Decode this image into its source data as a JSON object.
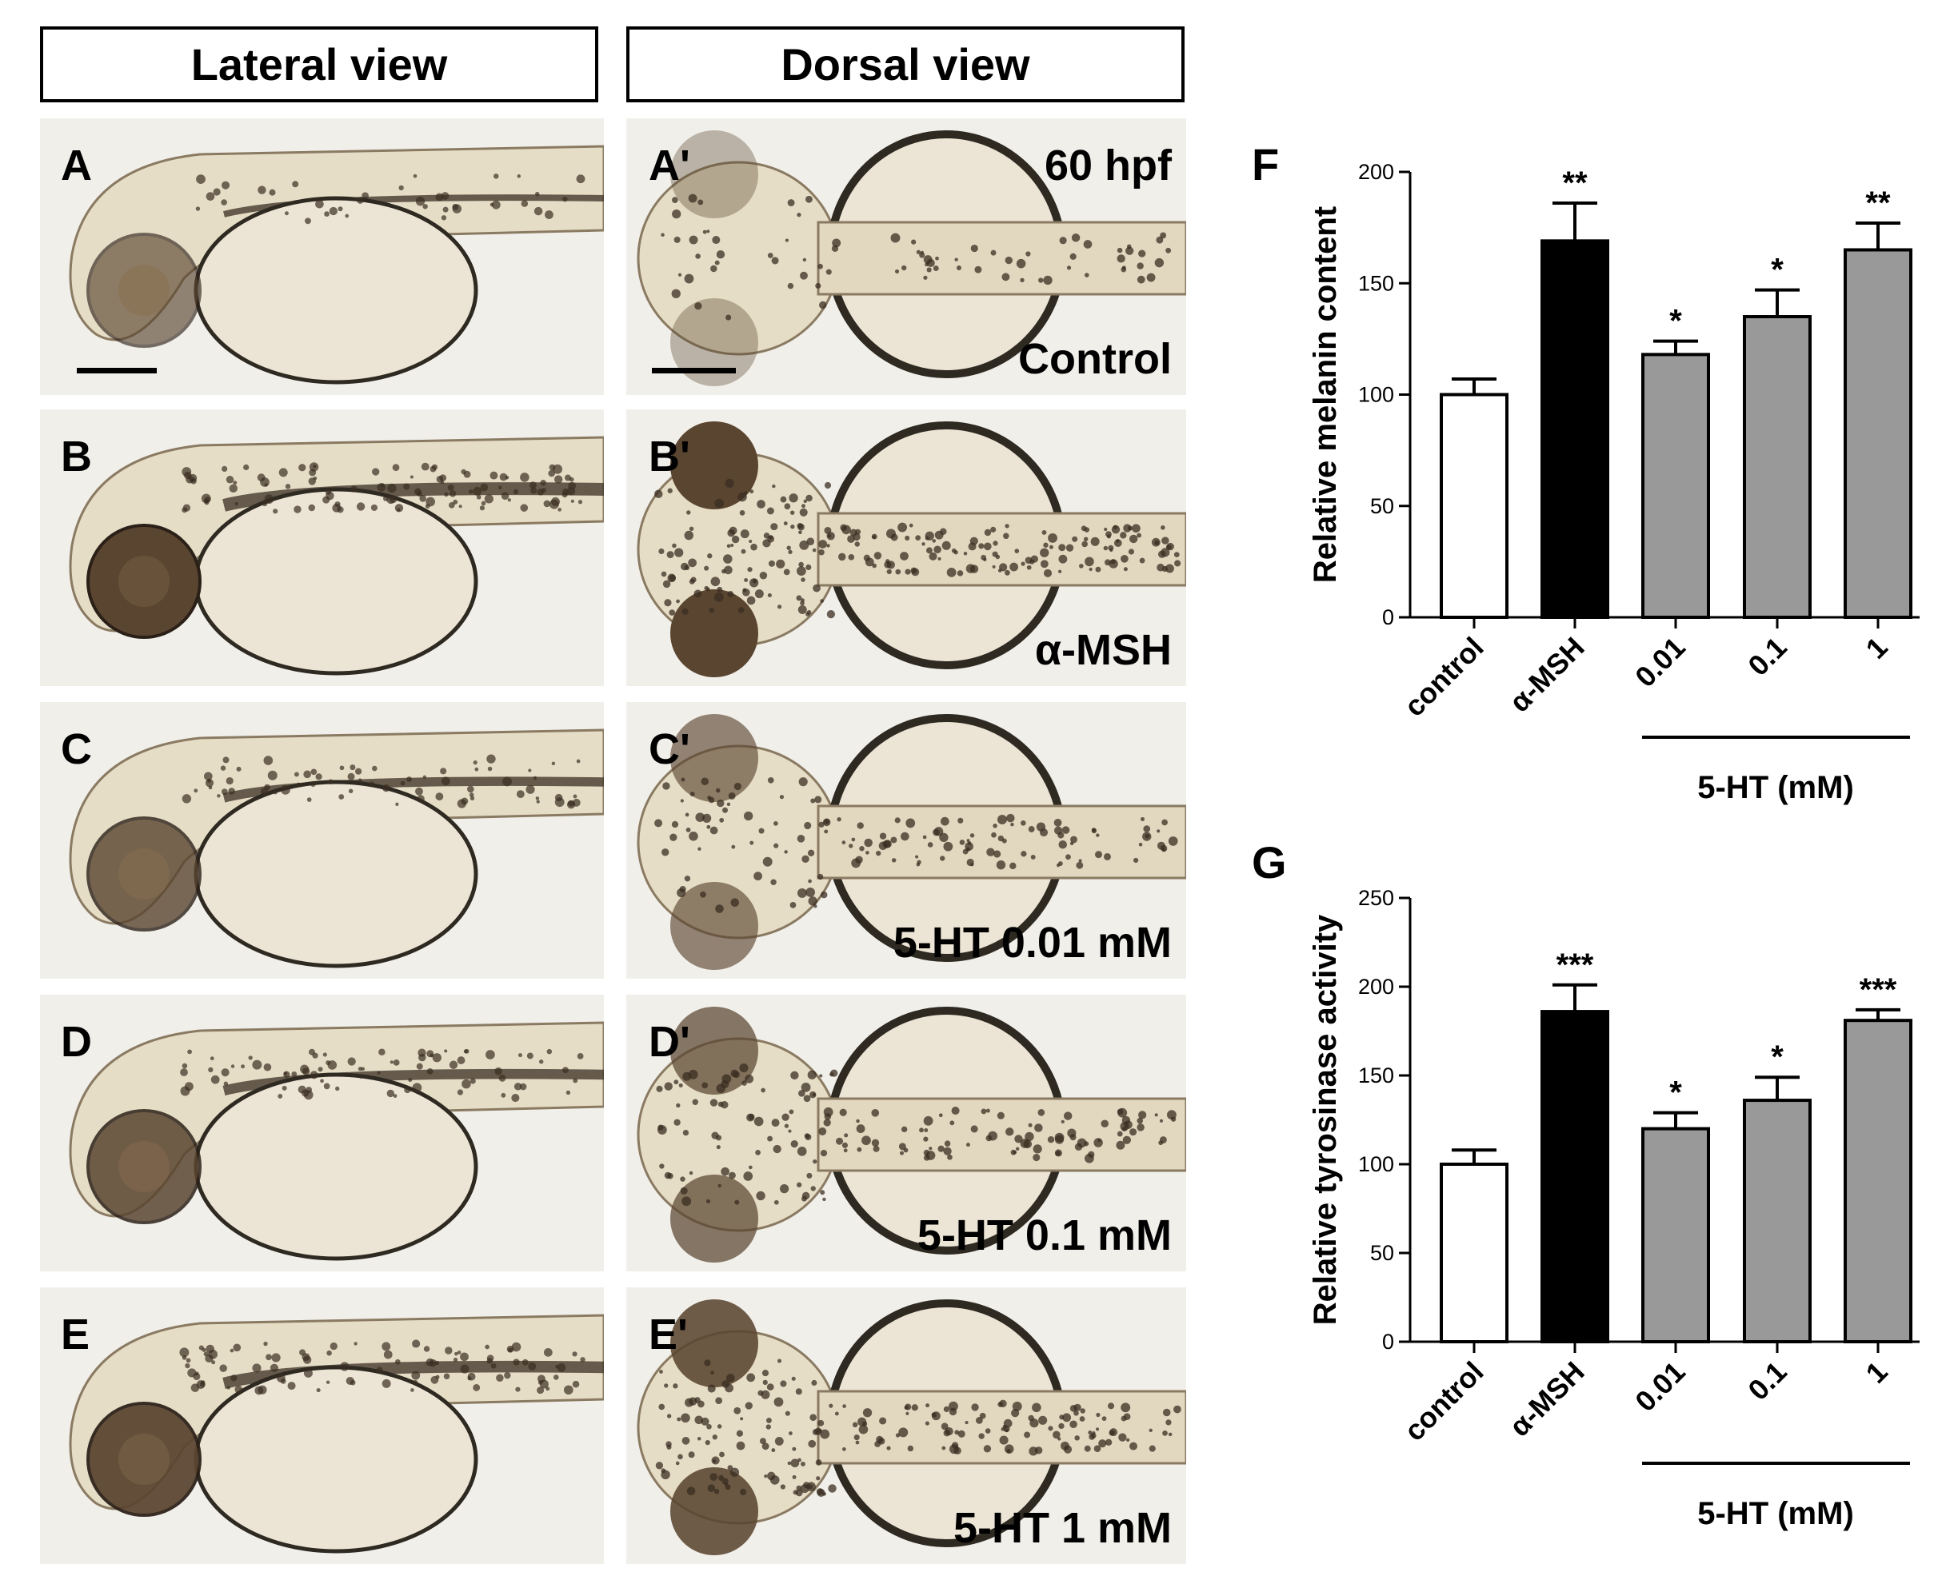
{
  "headers": {
    "lateral": "Lateral view",
    "dorsal": "Dorsal view"
  },
  "stage_label": "60 hpf",
  "rows": [
    {
      "lateral_label": "A",
      "dorsal_label": "A'",
      "condition": "Control",
      "pigment": 0.2,
      "scale_bar": true
    },
    {
      "lateral_label": "B",
      "dorsal_label": "B'",
      "condition": "α-MSH",
      "pigment": 1.0,
      "scale_bar": false
    },
    {
      "lateral_label": "C",
      "dorsal_label": "C'",
      "condition": "5-HT 0.01 mM",
      "pigment": 0.55,
      "scale_bar": false
    },
    {
      "lateral_label": "D",
      "dorsal_label": "D'",
      "condition": "5-HT 0.1 mM",
      "pigment": 0.65,
      "scale_bar": false
    },
    {
      "lateral_label": "E",
      "dorsal_label": "E'",
      "condition": "5-HT 1 mM",
      "pigment": 0.85,
      "scale_bar": false
    }
  ],
  "colors": {
    "embryo_bg": "#f1efea",
    "yolk": "#ece4d4",
    "eye": "#5a4530",
    "melanocyte": "#3a2e22",
    "yolk_edge": "#2e2a22"
  },
  "chart_data": [
    {
      "panel_label": "F",
      "type": "bar",
      "categories": [
        "control",
        "α-MSH",
        "0.01",
        "0.1",
        "1"
      ],
      "values": [
        100,
        169,
        118,
        135,
        165
      ],
      "errors": [
        7,
        17,
        6,
        12,
        12
      ],
      "significance": [
        "",
        "**",
        "*",
        "*",
        "**"
      ],
      "bar_colors": [
        "#ffffff",
        "#000000",
        "#999999",
        "#999999",
        "#999999"
      ],
      "ylabel": "Relative melanin content",
      "ylim": [
        0,
        200
      ],
      "yticks": [
        0,
        50,
        100,
        150,
        200
      ],
      "group_label": "5-HT (mM)"
    },
    {
      "panel_label": "G",
      "type": "bar",
      "categories": [
        "control",
        "α-MSH",
        "0.01",
        "0.1",
        "1"
      ],
      "values": [
        100,
        186,
        120,
        136,
        181
      ],
      "errors": [
        8,
        15,
        9,
        13,
        6
      ],
      "significance": [
        "",
        "***",
        "*",
        "*",
        "***"
      ],
      "bar_colors": [
        "#ffffff",
        "#000000",
        "#999999",
        "#999999",
        "#999999"
      ],
      "ylabel": "Relative tyrosinase activity",
      "ylim": [
        0,
        250
      ],
      "yticks": [
        0,
        50,
        100,
        150,
        200,
        250
      ],
      "group_label": "5-HT (mM)"
    }
  ]
}
